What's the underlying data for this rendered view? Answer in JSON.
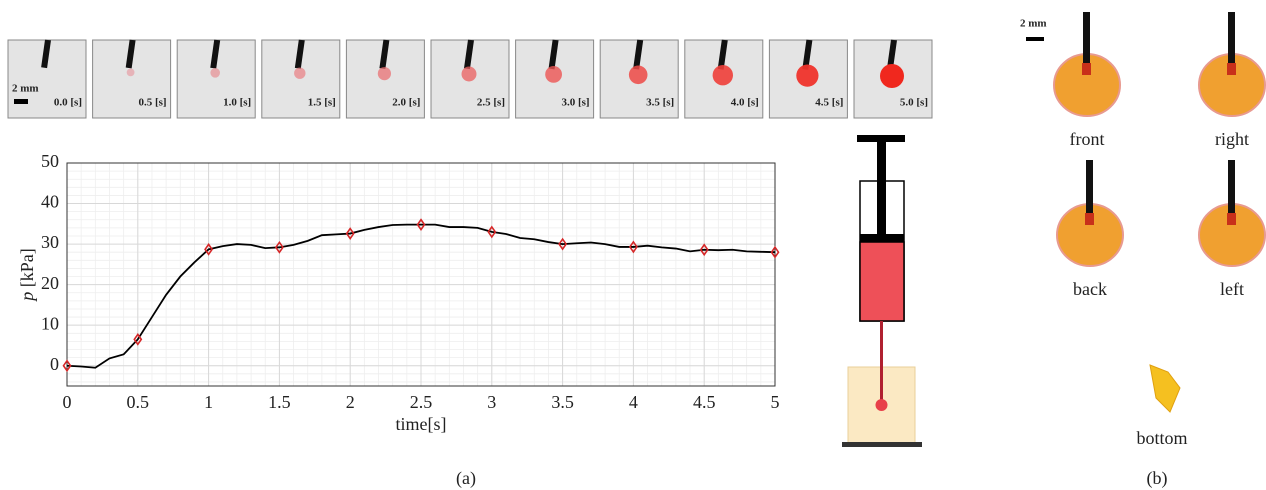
{
  "chart_data": {
    "type": "line",
    "xlabel": "time[s]",
    "ylabel_symbol": "p",
    "ylabel_unit": "[kPa]",
    "x": [
      0,
      0.1,
      0.2,
      0.3,
      0.4,
      0.5,
      0.6,
      0.7,
      0.8,
      0.9,
      1,
      1.1,
      1.2,
      1.3,
      1.4,
      1.5,
      1.6,
      1.7,
      1.8,
      1.9,
      2,
      2.1,
      2.2,
      2.3,
      2.4,
      2.5,
      2.6,
      2.7,
      2.8,
      2.9,
      3,
      3.1,
      3.2,
      3.3,
      3.4,
      3.5,
      3.6,
      3.7,
      3.8,
      3.9,
      4,
      4.1,
      4.2,
      4.3,
      4.4,
      4.5,
      4.6,
      4.7,
      4.8,
      4.9,
      5
    ],
    "series": [
      {
        "color": "#000000",
        "marker_color": "#d62728",
        "values": [
          0,
          -0.2,
          -0.5,
          1.8,
          2.8,
          6.5,
          12,
          17.5,
          22,
          25.5,
          28.7,
          29.5,
          30,
          29.8,
          29,
          29.2,
          29.8,
          30.8,
          32.2,
          32.4,
          32.6,
          33.5,
          34.2,
          34.7,
          34.8,
          34.8,
          34.8,
          34.2,
          34.2,
          34,
          33,
          32.5,
          31.5,
          31.2,
          30.5,
          30,
          30.2,
          30.4,
          30,
          29.3,
          29.3,
          29.6,
          29.2,
          28.9,
          28.2,
          28.6,
          28.5,
          28.6,
          28.2,
          28.1,
          28
        ]
      }
    ],
    "xlim": [
      0,
      5
    ],
    "ylim": [
      -5,
      50
    ],
    "xticks": [
      0,
      0.5,
      1,
      1.5,
      2,
      2.5,
      3,
      3.5,
      4,
      4.5,
      5
    ],
    "yticks": [
      0,
      10,
      20,
      30,
      40,
      50
    ],
    "grid": true,
    "minor_grid": true
  },
  "frames": {
    "scale_label": "2 mm",
    "labels": [
      "0.0 [s]",
      "0.5 [s]",
      "1.0 [s]",
      "1.5 [s]",
      "2.0 [s]",
      "2.5 [s]",
      "3.0 [s]",
      "3.5 [s]",
      "4.0 [s]",
      "4.5 [s]",
      "5.0 [s]"
    ]
  },
  "views": {
    "scale_label": "2 mm",
    "labels": [
      "front",
      "right",
      "back",
      "left",
      "bottom"
    ]
  },
  "captions": [
    "(a)",
    "(b)"
  ]
}
